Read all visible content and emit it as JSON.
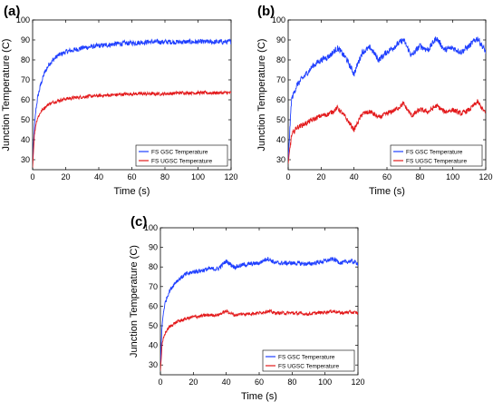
{
  "chart_data": [
    {
      "type": "line",
      "panel_label": "(a)",
      "xlabel": "Time (s)",
      "ylabel": "Junction Temperature (C)",
      "xlim": [
        0,
        120
      ],
      "ylim": [
        25,
        100
      ],
      "xticks": [
        0,
        20,
        40,
        60,
        80,
        100,
        120
      ],
      "yticks": [
        30,
        40,
        50,
        60,
        70,
        80,
        90,
        100
      ],
      "legend_position": "bottom-right",
      "series": [
        {
          "name": "FS GSC Temperature",
          "color": "#1f3fff",
          "x": [
            0,
            1,
            2,
            3,
            5,
            7,
            10,
            15,
            20,
            30,
            40,
            50,
            60,
            70,
            80,
            90,
            100,
            110,
            120
          ],
          "y": [
            27,
            45,
            55,
            61,
            68,
            73,
            78,
            82,
            84,
            86,
            87,
            88,
            88.5,
            89,
            89,
            89,
            89,
            89,
            89
          ],
          "noise": 1.2
        },
        {
          "name": "FS UGSC Temperature",
          "color": "#e31a1c",
          "x": [
            0,
            1,
            2,
            3,
            5,
            7,
            10,
            15,
            20,
            30,
            40,
            50,
            60,
            70,
            80,
            90,
            100,
            110,
            120
          ],
          "y": [
            26,
            42,
            48,
            51,
            54,
            56,
            58,
            59.5,
            60.5,
            61.5,
            62,
            62.5,
            63,
            63,
            63,
            63.5,
            63.5,
            63.5,
            63.5
          ],
          "noise": 0.8
        }
      ]
    },
    {
      "type": "line",
      "panel_label": "(b)",
      "xlabel": "Time (s)",
      "ylabel": "Junction Temperature (C)",
      "xlim": [
        0,
        120
      ],
      "ylim": [
        25,
        100
      ],
      "xticks": [
        0,
        20,
        40,
        60,
        80,
        100,
        120
      ],
      "yticks": [
        30,
        40,
        50,
        60,
        70,
        80,
        90,
        100
      ],
      "legend_position": "bottom-right",
      "series": [
        {
          "name": "FS GSC Temperature",
          "color": "#1f3fff",
          "x": [
            0,
            2,
            5,
            10,
            15,
            20,
            25,
            30,
            35,
            40,
            45,
            50,
            55,
            60,
            65,
            70,
            75,
            80,
            85,
            90,
            95,
            100,
            105,
            110,
            115,
            120
          ],
          "y": [
            30,
            60,
            67,
            72,
            77,
            80,
            82,
            86,
            81,
            73,
            84,
            86,
            80,
            84,
            87,
            90,
            82,
            87,
            85,
            91,
            85,
            86,
            84,
            87,
            91,
            84
          ],
          "noise": 1.5
        },
        {
          "name": "FS UGSC Temperature",
          "color": "#e31a1c",
          "x": [
            0,
            2,
            5,
            10,
            15,
            20,
            25,
            30,
            35,
            40,
            45,
            50,
            55,
            60,
            65,
            70,
            75,
            80,
            85,
            90,
            95,
            100,
            105,
            110,
            115,
            120
          ],
          "y": [
            28,
            42,
            46,
            48,
            50,
            52,
            53,
            56,
            51,
            45,
            53,
            54,
            51,
            53,
            55,
            58,
            52,
            55,
            54,
            57,
            54,
            55,
            53,
            55,
            59,
            53
          ],
          "noise": 1.2
        }
      ]
    },
    {
      "type": "line",
      "panel_label": "(c)",
      "xlabel": "Time (s)",
      "ylabel": "Junction Temperature (C)",
      "xlim": [
        0,
        120
      ],
      "ylim": [
        25,
        100
      ],
      "xticks": [
        0,
        20,
        40,
        60,
        80,
        100,
        120
      ],
      "yticks": [
        30,
        40,
        50,
        60,
        70,
        80,
        90,
        100
      ],
      "legend_position": "bottom-right",
      "series": [
        {
          "name": "FS GSC Temperature",
          "color": "#1f3fff",
          "x": [
            0,
            1,
            2,
            3,
            5,
            8,
            10,
            15,
            20,
            30,
            35,
            40,
            45,
            50,
            60,
            65,
            70,
            80,
            90,
            100,
            105,
            110,
            115,
            120
          ],
          "y": [
            30,
            50,
            58,
            62,
            67,
            71,
            73,
            76,
            77.5,
            79,
            79,
            83,
            80,
            81,
            82,
            84.5,
            82,
            82,
            81.5,
            83,
            84,
            82,
            83,
            82
          ],
          "noise": 1.1
        },
        {
          "name": "FS UGSC Temperature",
          "color": "#e31a1c",
          "x": [
            0,
            1,
            2,
            3,
            5,
            8,
            10,
            15,
            20,
            30,
            35,
            40,
            45,
            50,
            60,
            65,
            70,
            80,
            90,
            100,
            105,
            110,
            115,
            120
          ],
          "y": [
            27,
            40,
            44,
            46.5,
            49,
            51,
            52,
            53.5,
            54.5,
            55.5,
            55.5,
            57.5,
            55.5,
            56,
            56.5,
            57.5,
            56.5,
            56.5,
            56,
            57,
            57.5,
            56.5,
            57,
            56.5
          ],
          "noise": 0.8
        }
      ]
    }
  ]
}
